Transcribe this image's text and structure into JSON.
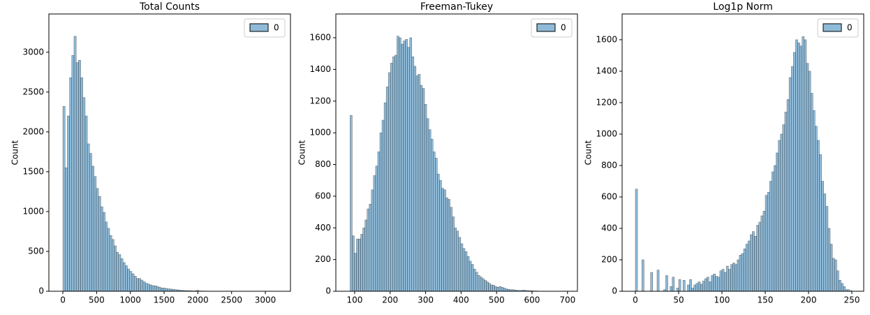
{
  "chart_data": [
    {
      "type": "histogram",
      "title": "Total Counts",
      "ylabel": "Count",
      "legend": "upper right",
      "alpha": 0.5,
      "xlim": [
        -207,
        3372
      ],
      "ylim": [
        0,
        3480
      ],
      "xticks": [
        0,
        500,
        1000,
        1500,
        2000,
        2500,
        3000
      ],
      "yticks": [
        0,
        500,
        1000,
        1500,
        2000,
        2500,
        3000
      ],
      "bins": [
        0,
        33,
        66,
        99,
        132,
        165,
        198,
        231,
        264,
        297,
        330,
        363,
        396,
        429,
        462,
        495,
        528,
        561,
        594,
        627,
        660,
        693,
        726,
        759,
        792,
        825,
        858,
        891,
        924,
        957,
        990,
        1023,
        1056,
        1089,
        1122,
        1155,
        1188,
        1221,
        1254,
        1287,
        1320,
        1353,
        1386,
        1419,
        1452,
        1485,
        1518,
        1551,
        1584,
        1617,
        1650,
        1683,
        1716,
        1749,
        1782,
        1815,
        1848,
        1881,
        1914,
        1947,
        1980,
        2013,
        2046,
        2079,
        2112,
        2145,
        2178,
        2211,
        2244,
        2277,
        2310,
        2343,
        2376,
        2409,
        2442,
        2475,
        2508,
        2541,
        2574,
        2607,
        2640,
        2673,
        2706,
        2739,
        2772,
        2805,
        2838,
        2871,
        2904,
        2937,
        2970,
        3003,
        3036,
        3069,
        3102,
        3135,
        3168,
        3201,
        3234,
        3267,
        3300
      ],
      "series": [
        {
          "name": "0",
          "color": "#1f77b4",
          "values": [
            2320,
            1550,
            2200,
            2680,
            2960,
            3200,
            2870,
            2900,
            2680,
            2430,
            2200,
            1850,
            1730,
            1570,
            1440,
            1290,
            1190,
            1060,
            990,
            870,
            790,
            700,
            650,
            570,
            490,
            460,
            410,
            360,
            320,
            280,
            250,
            220,
            190,
            160,
            160,
            140,
            120,
            100,
            90,
            80,
            70,
            70,
            60,
            50,
            40,
            40,
            35,
            30,
            28,
            25,
            20,
            18,
            15,
            12,
            10,
            8,
            7,
            6,
            5,
            5,
            12,
            4,
            3,
            3,
            2,
            2,
            2,
            1,
            1,
            1,
            1,
            1,
            0,
            1,
            0,
            1,
            0,
            0,
            1,
            0,
            0,
            1,
            0,
            0,
            0,
            1,
            0,
            0,
            0,
            0,
            0,
            0,
            1,
            0,
            0,
            0,
            0,
            0,
            0,
            1
          ]
        }
      ]
    },
    {
      "type": "histogram",
      "title": "Freeman-Tukey",
      "ylabel": "Count",
      "legend": "upper right",
      "alpha": 0.5,
      "xlim": [
        47,
        728
      ],
      "ylim": [
        0,
        1750
      ],
      "xticks": [
        100,
        200,
        300,
        400,
        500,
        600,
        700
      ],
      "yticks": [
        0,
        200,
        400,
        600,
        800,
        1000,
        1200,
        1400,
        1600
      ],
      "bins": [
        87,
        93,
        99,
        105,
        111,
        117,
        123,
        129,
        135,
        141,
        147,
        153,
        159,
        165,
        171,
        177,
        183,
        189,
        195,
        201,
        207,
        213,
        219,
        225,
        231,
        237,
        243,
        249,
        255,
        261,
        267,
        273,
        279,
        285,
        291,
        297,
        303,
        309,
        315,
        321,
        327,
        333,
        339,
        345,
        351,
        357,
        363,
        369,
        375,
        381,
        387,
        393,
        399,
        405,
        411,
        417,
        423,
        429,
        435,
        441,
        447,
        453,
        459,
        465,
        471,
        477,
        483,
        489,
        495,
        501,
        507,
        513,
        519,
        525,
        531,
        537,
        543,
        549,
        555,
        561,
        567,
        573,
        579,
        585,
        591,
        597,
        603,
        609,
        615,
        621,
        627,
        633,
        639,
        645,
        651,
        657,
        663,
        669,
        675,
        681,
        687
      ],
      "series": [
        {
          "name": "0",
          "color": "#1f77b4",
          "values": [
            1110,
            350,
            240,
            330,
            330,
            360,
            400,
            450,
            520,
            550,
            640,
            730,
            790,
            880,
            1000,
            1080,
            1190,
            1290,
            1380,
            1440,
            1480,
            1490,
            1610,
            1600,
            1560,
            1580,
            1590,
            1540,
            1600,
            1480,
            1420,
            1360,
            1370,
            1300,
            1280,
            1180,
            1090,
            1020,
            960,
            880,
            840,
            740,
            700,
            650,
            640,
            590,
            580,
            530,
            470,
            400,
            380,
            340,
            300,
            270,
            250,
            220,
            190,
            170,
            140,
            120,
            100,
            90,
            80,
            70,
            60,
            50,
            40,
            38,
            30,
            25,
            30,
            25,
            20,
            15,
            12,
            10,
            10,
            8,
            6,
            5,
            5,
            8,
            5,
            4,
            3,
            3,
            2,
            2,
            1,
            1,
            1,
            0,
            1,
            0,
            0,
            1,
            0,
            0,
            0,
            1
          ]
        }
      ]
    },
    {
      "type": "histogram",
      "title": "Log1p Norm",
      "ylabel": "Count",
      "legend": "upper right",
      "alpha": 0.5,
      "xlim": [
        -15.3,
        263.7
      ],
      "ylim": [
        0,
        1764
      ],
      "xticks": [
        0,
        50,
        100,
        150,
        200,
        250
      ],
      "yticks": [
        0,
        200,
        400,
        600,
        800,
        1000,
        1200,
        1400,
        1600
      ],
      "bins": [
        0,
        2.5,
        5,
        7.5,
        10,
        12.5,
        15,
        17.5,
        20,
        22.5,
        25,
        27.5,
        30,
        32.5,
        35,
        37.5,
        40,
        42.5,
        45,
        47.5,
        50,
        52.5,
        55,
        57.5,
        60,
        62.5,
        65,
        67.5,
        70,
        72.5,
        75,
        77.5,
        80,
        82.5,
        85,
        87.5,
        90,
        92.5,
        95,
        97.5,
        100,
        102.5,
        105,
        107.5,
        110,
        112.5,
        115,
        117.5,
        120,
        122.5,
        125,
        127.5,
        130,
        132.5,
        135,
        137.5,
        140,
        142.5,
        145,
        147.5,
        150,
        152.5,
        155,
        157.5,
        160,
        162.5,
        165,
        167.5,
        170,
        172.5,
        175,
        177.5,
        180,
        182.5,
        185,
        187.5,
        190,
        192.5,
        195,
        197.5,
        200,
        202.5,
        205,
        207.5,
        210,
        212.5,
        215,
        217.5,
        220,
        222.5,
        225,
        227.5,
        230,
        232.5,
        235,
        237.5,
        240,
        242.5,
        245,
        247.5,
        250
      ],
      "series": [
        {
          "name": "0",
          "color": "#1f77b4",
          "values": [
            650,
            0,
            0,
            200,
            0,
            0,
            0,
            120,
            0,
            0,
            135,
            0,
            0,
            10,
            100,
            0,
            30,
            90,
            0,
            20,
            75,
            0,
            70,
            0,
            40,
            75,
            20,
            40,
            50,
            60,
            45,
            65,
            80,
            90,
            60,
            100,
            110,
            95,
            90,
            130,
            140,
            120,
            160,
            140,
            170,
            180,
            170,
            200,
            230,
            240,
            270,
            300,
            320,
            360,
            380,
            350,
            420,
            440,
            480,
            510,
            610,
            630,
            700,
            760,
            800,
            880,
            960,
            1000,
            1060,
            1140,
            1220,
            1360,
            1430,
            1520,
            1600,
            1580,
            1560,
            1620,
            1600,
            1450,
            1400,
            1260,
            1150,
            1050,
            960,
            870,
            700,
            620,
            540,
            400,
            300,
            210,
            200,
            130,
            70,
            50,
            30,
            10,
            10,
            3
          ]
        }
      ]
    }
  ]
}
